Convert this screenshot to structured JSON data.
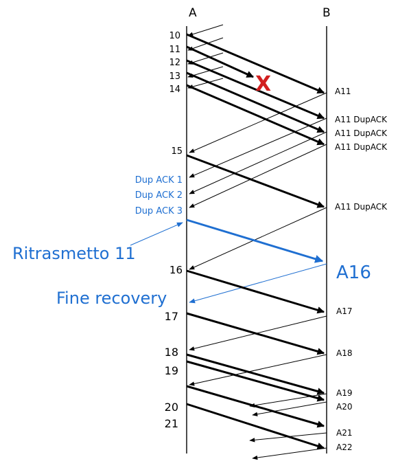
{
  "hosts": {
    "left": "A",
    "right": "B"
  },
  "colors": {
    "data": "#000000",
    "ack": "#000000",
    "highlight": "#1f6fd1",
    "loss": "#d21f1f"
  },
  "loss_marker": "X",
  "sequence_labels": [
    "10",
    "11",
    "12",
    "13",
    "14",
    "15",
    "16",
    "17",
    "18",
    "19",
    "20",
    "21"
  ],
  "dup_ack_labels": [
    "Dup ACK 1",
    "Dup ACK 2",
    "Dup ACK 3"
  ],
  "ack_labels": [
    "A11",
    "A11 DupACK",
    "A11 DupACK",
    "A11 DupACK",
    "A11 DupACK",
    "A16",
    "A17",
    "A18",
    "A19",
    "A20",
    "A21",
    "A22"
  ],
  "annotations": {
    "retransmit": "Ritrasmetto 11",
    "recovery_end": "Fine recovery"
  }
}
